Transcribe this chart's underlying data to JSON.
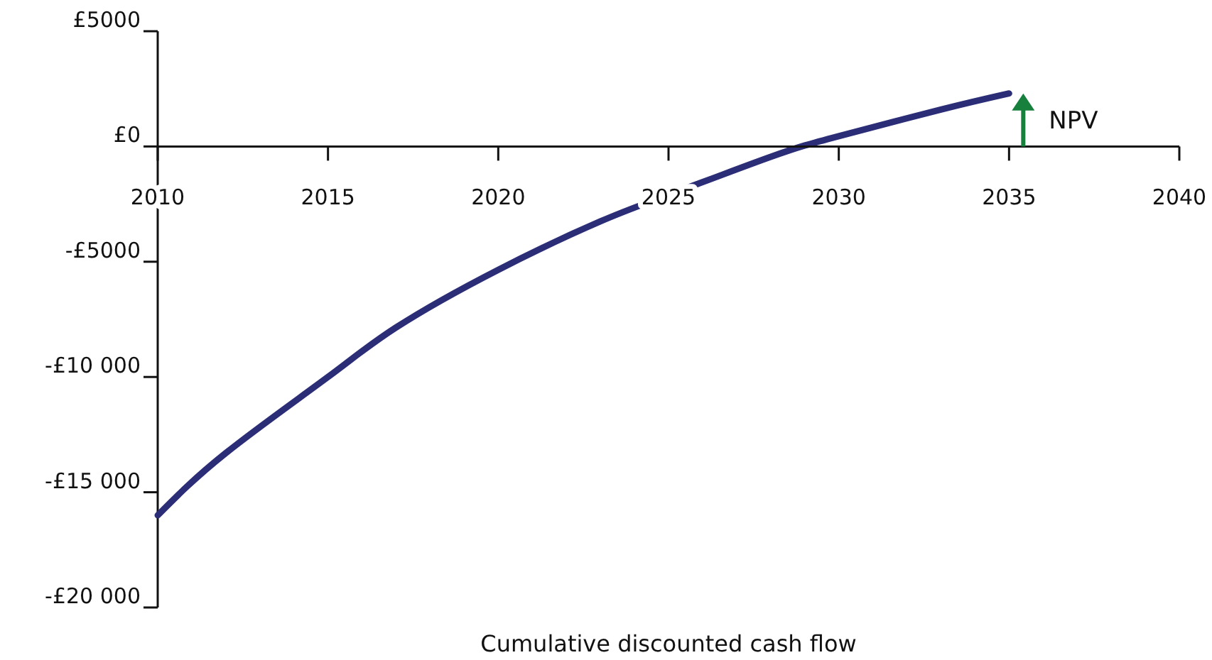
{
  "chart_data": {
    "type": "line",
    "xlabel": "Cumulative discounted cash flow",
    "x": [
      2010,
      2012,
      2015,
      2017,
      2020,
      2023,
      2025,
      2028,
      2030,
      2033,
      2035
    ],
    "series": [
      {
        "color": "#2b2d77",
        "values": [
          -16000,
          -13300,
          -10000,
          -7850,
          -5350,
          -3250,
          -2100,
          -450,
          450,
          1600,
          2300
        ]
      }
    ],
    "xlim": [
      2010,
      2040
    ],
    "xticks": [
      2010,
      2015,
      2020,
      2025,
      2030,
      2035,
      2040
    ],
    "ylim": [
      -20000,
      5000
    ],
    "yticks": [
      {
        "value": 5000,
        "label": "£5000"
      },
      {
        "value": 0,
        "label": "£0"
      },
      {
        "value": -5000,
        "label": "-£5000"
      },
      {
        "value": -10000,
        "label": "-£10 000"
      },
      {
        "value": -15000,
        "label": "-£15 000"
      },
      {
        "value": -20000,
        "label": "-£20 000"
      }
    ],
    "annotations": [
      "NPV"
    ],
    "grid": false,
    "marker": "none",
    "line_style": "solid"
  }
}
